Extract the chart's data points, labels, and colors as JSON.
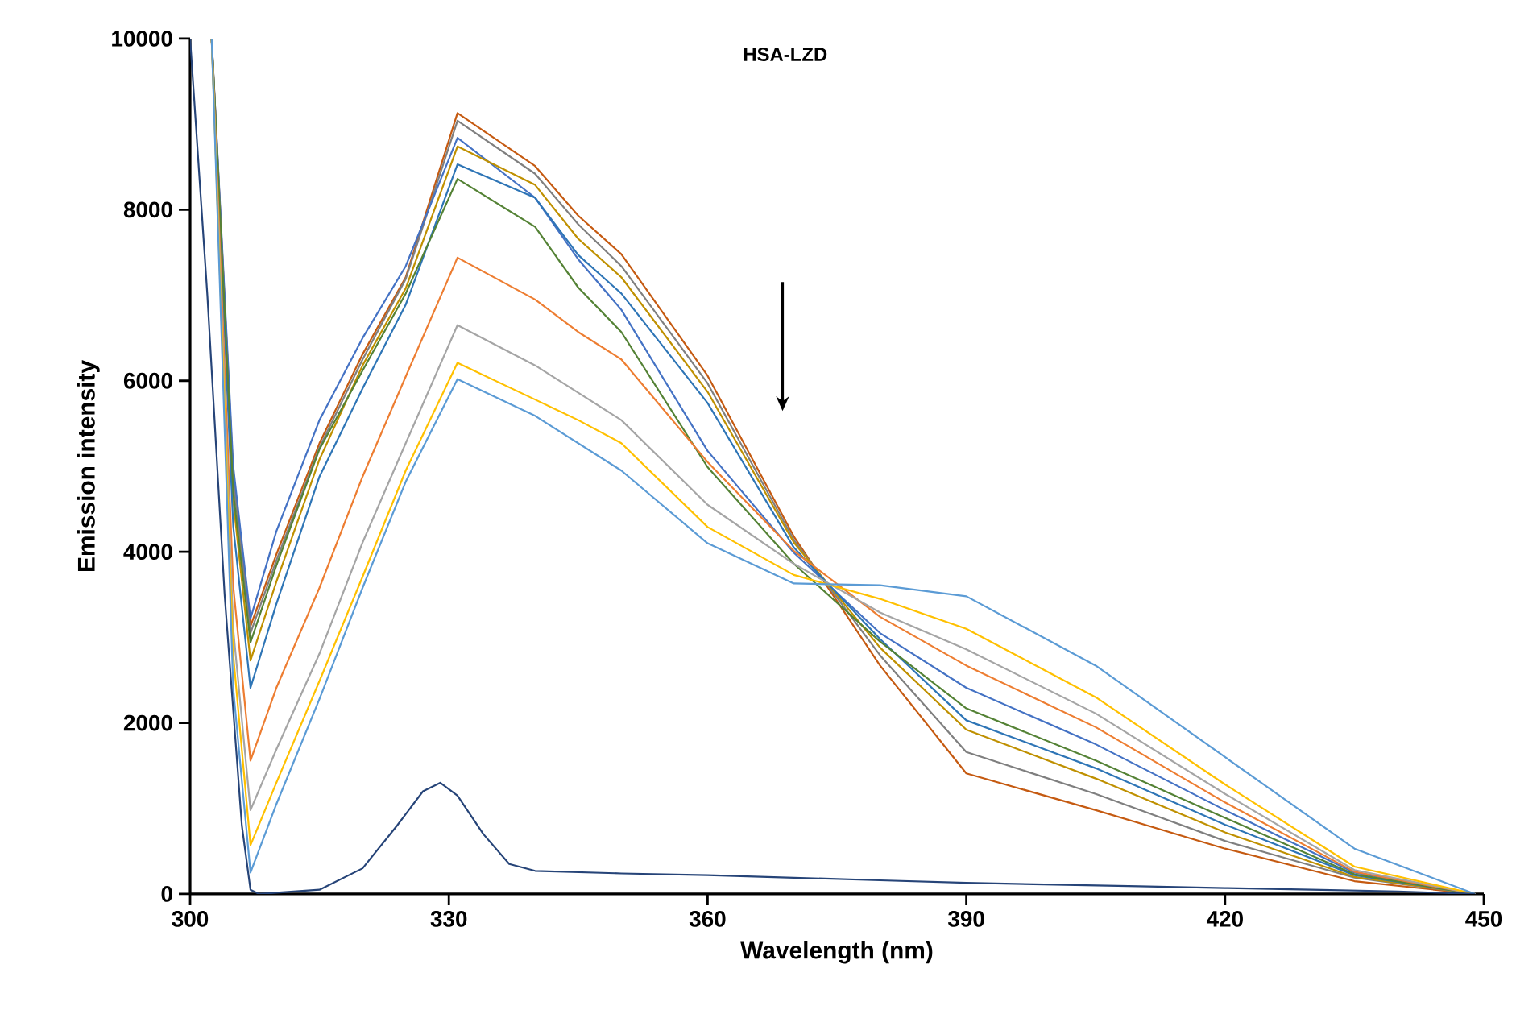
{
  "chart_data": {
    "type": "line",
    "title": "HSA-LZD",
    "xlabel": "Wavelength (nm)",
    "ylabel": "Emission intensity",
    "xlim": [
      300,
      450
    ],
    "xticks": [
      300,
      330,
      360,
      390,
      420,
      450
    ],
    "ylim": [
      0,
      10000
    ],
    "yticks": [
      0,
      2000,
      4000,
      6000,
      8000,
      10000
    ],
    "grid": false,
    "marker": "none",
    "line_style": "solid",
    "x": [
      302.5,
      305,
      307,
      310,
      315,
      320,
      325,
      331,
      340,
      345,
      350,
      360,
      370,
      380,
      390,
      405,
      420,
      435,
      449
    ],
    "series": [
      {
        "color": "#c55a11",
        "values": [
          10000,
          4900,
          3130,
          3970,
          5270,
          6310,
          7210,
          9130,
          8510,
          7930,
          7480,
          6060,
          4180,
          2670,
          1410,
          980,
          530,
          150,
          0
        ]
      },
      {
        "color": "#7f7f7f",
        "values": [
          10000,
          4850,
          3050,
          3900,
          5220,
          6250,
          7190,
          9040,
          8420,
          7830,
          7340,
          5970,
          4140,
          2790,
          1660,
          1170,
          620,
          190,
          0
        ]
      },
      {
        "color": "#4472c4",
        "values": [
          10000,
          5000,
          3220,
          4240,
          5540,
          6500,
          7340,
          8840,
          8140,
          7420,
          6830,
          5180,
          3990,
          3050,
          2410,
          1750,
          980,
          250,
          0
        ]
      },
      {
        "color": "#bf9000",
        "values": [
          10000,
          4600,
          2730,
          3650,
          5080,
          6180,
          7080,
          8740,
          8290,
          7660,
          7210,
          5870,
          4110,
          2880,
          1920,
          1350,
          720,
          200,
          0
        ]
      },
      {
        "color": "#2e75b6",
        "values": [
          10000,
          4300,
          2410,
          3390,
          4880,
          5910,
          6890,
          8530,
          8140,
          7470,
          7020,
          5740,
          4050,
          2980,
          2030,
          1470,
          810,
          220,
          0
        ]
      },
      {
        "color": "#548235",
        "values": [
          10000,
          4700,
          2940,
          3840,
          5200,
          6120,
          7020,
          8360,
          7800,
          7090,
          6570,
          4990,
          3860,
          2950,
          2170,
          1560,
          890,
          230,
          0
        ]
      },
      {
        "color": "#ed7d31",
        "values": [
          10000,
          3600,
          1560,
          2410,
          3580,
          4880,
          6050,
          7440,
          6950,
          6570,
          6250,
          5050,
          4010,
          3240,
          2670,
          1950,
          1070,
          260,
          0
        ]
      },
      {
        "color": "#a5a5a5",
        "values": [
          10000,
          3100,
          980,
          1690,
          2810,
          4110,
          5270,
          6650,
          6180,
          5860,
          5540,
          4550,
          3860,
          3290,
          2860,
          2110,
          1170,
          280,
          0
        ]
      },
      {
        "color": "#ffc000",
        "values": [
          10000,
          2800,
          570,
          1300,
          2490,
          3710,
          4950,
          6210,
          5780,
          5540,
          5270,
          4290,
          3730,
          3450,
          3100,
          2300,
          1280,
          320,
          0
        ]
      },
      {
        "color": "#5b9bd5",
        "values": [
          10000,
          2400,
          250,
          1050,
          2280,
          3580,
          4820,
          6020,
          5590,
          5270,
          4950,
          4100,
          3630,
          3610,
          3480,
          2670,
          1600,
          530,
          0
        ]
      },
      {
        "color": "#264478",
        "x": [
          300,
          302,
          304,
          306,
          307,
          308,
          315,
          320,
          324,
          327,
          329,
          331,
          334,
          337,
          340,
          350,
          360,
          370,
          380,
          390,
          400,
          410,
          420,
          430,
          440,
          449
        ],
        "values": [
          10000,
          7000,
          3500,
          800,
          50,
          0,
          50,
          300,
          800,
          1200,
          1300,
          1150,
          700,
          350,
          270,
          240,
          220,
          190,
          160,
          130,
          110,
          90,
          70,
          50,
          30,
          0
        ]
      }
    ]
  }
}
